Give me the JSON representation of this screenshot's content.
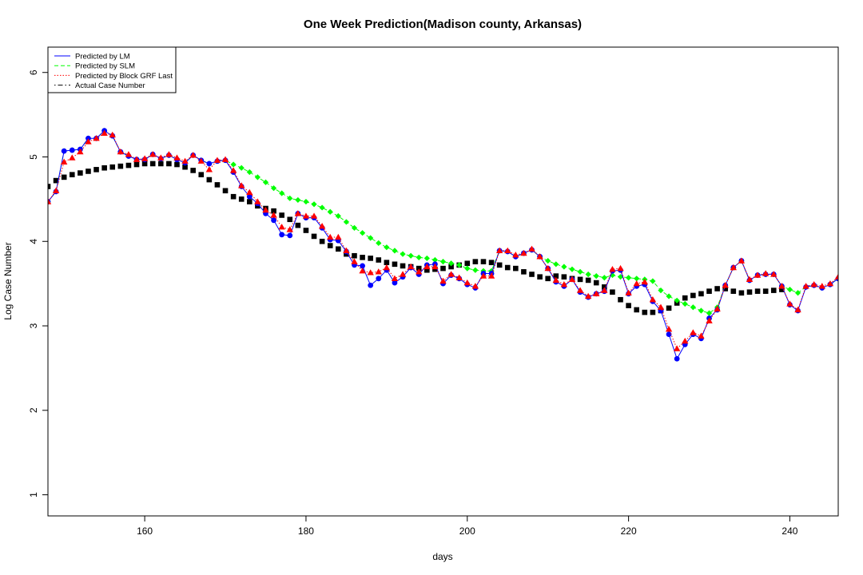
{
  "chart_data": {
    "type": "scatter",
    "title": "One Week Prediction(Madison county, Arkansas)",
    "xlabel": "days",
    "ylabel": "Log Case Number",
    "xlim": [
      148,
      246
    ],
    "ylim": [
      0.75,
      6.3
    ],
    "xticks": [
      "160",
      "180",
      "200",
      "220",
      "240"
    ],
    "xtick_values": [
      160,
      180,
      200,
      220,
      240
    ],
    "yticks": [
      "1",
      "2",
      "3",
      "4",
      "5",
      "6"
    ],
    "ytick_values": [
      1,
      2,
      3,
      4,
      5,
      6
    ],
    "grid": false,
    "legend_position": "top-left",
    "x": [
      148,
      149,
      150,
      151,
      152,
      153,
      154,
      155,
      156,
      157,
      158,
      159,
      160,
      161,
      162,
      163,
      164,
      165,
      166,
      167,
      168,
      169,
      170,
      171,
      172,
      173,
      174,
      175,
      176,
      177,
      178,
      179,
      180,
      181,
      182,
      183,
      184,
      185,
      186,
      187,
      188,
      189,
      190,
      191,
      192,
      193,
      194,
      195,
      196,
      197,
      198,
      199,
      200,
      201,
      202,
      203,
      204,
      205,
      206,
      207,
      208,
      209,
      210,
      211,
      212,
      213,
      214,
      215,
      216,
      217,
      218,
      219,
      220,
      221,
      222,
      223,
      224,
      225,
      226,
      227,
      228,
      229,
      230,
      231,
      232,
      233,
      234,
      235,
      236,
      237,
      238,
      239,
      240,
      241,
      242,
      243,
      244,
      245,
      246
    ],
    "series": [
      {
        "name": "Predicted by LM",
        "color": "#0000ff",
        "line": "solid",
        "marker": "filled-circle",
        "values": [
          4.47,
          4.59,
          5.07,
          5.08,
          5.09,
          5.22,
          5.22,
          5.31,
          5.25,
          5.06,
          5.01,
          4.97,
          4.97,
          5.03,
          4.98,
          5.02,
          4.97,
          4.93,
          5.02,
          4.96,
          4.92,
          4.95,
          4.96,
          4.82,
          4.65,
          4.53,
          4.45,
          4.33,
          4.25,
          4.08,
          4.07,
          4.33,
          4.28,
          4.28,
          4.16,
          4.02,
          4.01,
          3.88,
          3.72,
          3.71,
          3.48,
          3.56,
          3.66,
          3.51,
          3.58,
          3.69,
          3.61,
          3.72,
          3.73,
          3.5,
          3.6,
          3.56,
          3.49,
          3.45,
          3.62,
          3.62,
          3.89,
          3.88,
          3.82,
          3.86,
          3.9,
          3.82,
          3.68,
          3.52,
          3.47,
          3.55,
          3.4,
          3.34,
          3.38,
          3.41,
          3.65,
          3.66,
          3.38,
          3.47,
          3.49,
          3.29,
          3.18,
          2.9,
          2.61,
          2.78,
          2.9,
          2.85,
          3.09,
          3.19,
          3.48,
          3.69,
          3.77,
          3.54,
          3.6,
          3.61,
          3.61,
          3.47,
          3.25,
          3.18,
          3.46,
          3.48,
          3.45,
          3.49,
          3.56
        ]
      },
      {
        "name": "Predicted by SLM",
        "color": "#00ff00",
        "line": "dashed",
        "marker": "filled-diamond",
        "values": [
          4.47,
          4.59,
          5.07,
          5.08,
          5.09,
          5.22,
          5.22,
          5.31,
          5.25,
          5.06,
          5.01,
          4.97,
          4.97,
          5.03,
          4.98,
          5.02,
          4.97,
          4.93,
          5.02,
          4.96,
          4.92,
          4.95,
          4.96,
          4.91,
          4.87,
          4.82,
          4.76,
          4.7,
          4.63,
          4.57,
          4.51,
          4.49,
          4.47,
          4.44,
          4.4,
          4.35,
          4.3,
          4.23,
          4.16,
          4.1,
          4.04,
          3.98,
          3.93,
          3.89,
          3.85,
          3.83,
          3.81,
          3.8,
          3.78,
          3.76,
          3.74,
          3.72,
          3.68,
          3.66,
          3.65,
          3.65,
          3.89,
          3.88,
          3.82,
          3.86,
          3.9,
          3.82,
          3.77,
          3.73,
          3.7,
          3.67,
          3.64,
          3.61,
          3.59,
          3.57,
          3.6,
          3.58,
          3.57,
          3.56,
          3.55,
          3.53,
          3.42,
          3.35,
          3.3,
          3.26,
          3.22,
          3.18,
          3.15,
          3.22,
          3.48,
          3.69,
          3.77,
          3.54,
          3.6,
          3.61,
          3.61,
          3.47,
          3.43,
          3.39,
          3.46,
          3.48,
          3.45,
          3.49,
          3.56
        ]
      },
      {
        "name": "Predicted by Block GRF Last",
        "color": "#ff0000",
        "line": "dotted",
        "marker": "filled-triangle",
        "values": [
          4.47,
          4.6,
          4.94,
          4.99,
          5.06,
          5.18,
          5.22,
          5.28,
          5.26,
          5.06,
          5.03,
          4.97,
          4.98,
          5.03,
          4.99,
          5.03,
          4.99,
          4.95,
          5.02,
          4.95,
          4.85,
          4.96,
          4.97,
          4.84,
          4.66,
          4.58,
          4.47,
          4.37,
          4.31,
          4.17,
          4.14,
          4.33,
          4.3,
          4.3,
          4.18,
          4.05,
          4.05,
          3.89,
          3.76,
          3.65,
          3.63,
          3.64,
          3.69,
          3.56,
          3.61,
          3.7,
          3.64,
          3.7,
          3.7,
          3.53,
          3.61,
          3.57,
          3.51,
          3.47,
          3.59,
          3.59,
          3.89,
          3.89,
          3.84,
          3.86,
          3.91,
          3.82,
          3.68,
          3.54,
          3.49,
          3.55,
          3.42,
          3.35,
          3.38,
          3.42,
          3.67,
          3.68,
          3.39,
          3.5,
          3.52,
          3.31,
          3.22,
          2.96,
          2.73,
          2.82,
          2.92,
          2.88,
          3.06,
          3.2,
          3.48,
          3.69,
          3.77,
          3.55,
          3.6,
          3.62,
          3.61,
          3.47,
          3.26,
          3.19,
          3.47,
          3.49,
          3.47,
          3.5,
          3.58
        ]
      },
      {
        "name": "Actual Case Number",
        "color": "#000000",
        "line": "dotdash",
        "marker": "filled-square",
        "values": [
          4.65,
          4.72,
          4.76,
          4.79,
          4.81,
          4.83,
          4.85,
          4.87,
          4.88,
          4.89,
          4.9,
          4.91,
          4.92,
          4.92,
          4.92,
          4.92,
          4.91,
          4.88,
          4.84,
          4.79,
          4.73,
          4.67,
          4.6,
          4.53,
          4.5,
          4.47,
          4.42,
          4.39,
          4.36,
          4.31,
          4.26,
          4.19,
          4.13,
          4.06,
          4.0,
          3.95,
          3.91,
          3.85,
          3.83,
          3.81,
          3.8,
          3.78,
          3.75,
          3.73,
          3.71,
          3.7,
          3.68,
          3.66,
          3.67,
          3.68,
          3.7,
          3.72,
          3.74,
          3.76,
          3.76,
          3.75,
          3.72,
          3.69,
          3.68,
          3.64,
          3.61,
          3.58,
          3.56,
          3.59,
          3.58,
          3.56,
          3.55,
          3.54,
          3.51,
          3.46,
          3.4,
          3.31,
          3.24,
          3.19,
          3.16,
          3.16,
          3.18,
          3.21,
          3.27,
          3.33,
          3.36,
          3.38,
          3.41,
          3.44,
          3.44,
          3.41,
          3.39,
          3.4,
          3.41,
          3.41,
          3.42,
          3.43,
          null,
          null,
          null,
          null,
          null,
          null,
          null
        ]
      }
    ]
  }
}
